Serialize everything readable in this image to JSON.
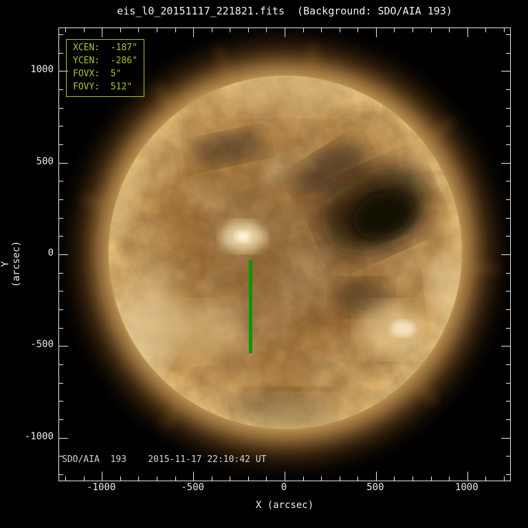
{
  "title": "eis_l0_20151117_221821.fits  (Background: SDO/AIA 193)",
  "fov_box": {
    "border_color": "#a8c828",
    "lines": [
      "XCEN:  -187\"",
      "YCEN:  -286\"",
      "FOVX:  5\"",
      "FOVY:  512\""
    ]
  },
  "annotation": "SDO/AIA  193    2015-11-17 22:10:42 UT",
  "chart_data": {
    "type": "heatmap",
    "title": "eis_l0_20151117_221821.fits  (Background: SDO/AIA 193)",
    "xlabel": "X (arcsec)",
    "ylabel": "Y (arcsec)",
    "xlim": [
      -1234,
      1234
    ],
    "ylim": [
      -1234,
      1234
    ],
    "x_major_ticks": [
      -1000,
      -500,
      0,
      500,
      1000
    ],
    "y_major_ticks": [
      1000,
      500,
      0,
      -500,
      -1000
    ],
    "minor_tick_step": 100,
    "grid": false,
    "legend": "none",
    "background_description": "SDO/AIA 193 full-disk solar EUV image, gold color table, dark coronal hole north-east of disk center, bright active region near disk center",
    "sun_center_arcsec": [
      0,
      0
    ],
    "solar_radius_arcsec": 965,
    "fov_overlay": {
      "xcen_arcsec": -187,
      "ycen_arcsec": -286,
      "fovx_arcsec": 5,
      "fovy_arcsec": 512,
      "color": "#0a960a"
    },
    "annotation": "SDO/AIA  193    2015-11-17 22:10:42 UT"
  },
  "colors": {
    "background": "#000000",
    "frame": "#e9e9e9",
    "title_text": "#f2f2f2",
    "fov_green": "#0a960a",
    "info_green": "#a8c828",
    "disk_gold": "#d8a55c"
  }
}
